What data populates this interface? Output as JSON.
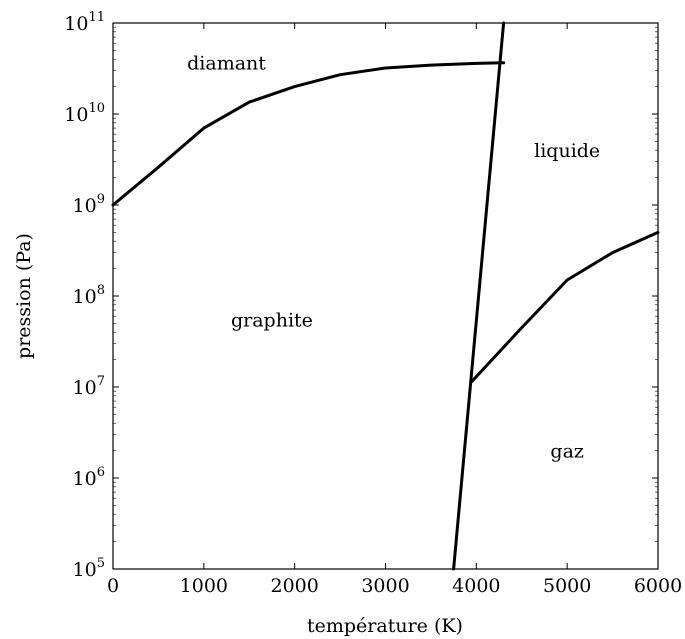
{
  "chart_data": {
    "type": "line",
    "xlabel": "température (K)",
    "ylabel": "pression (Pa)",
    "xlim": [
      0,
      6000
    ],
    "ylim": [
      100000,
      100000000000
    ],
    "yscale": "log",
    "grid": false,
    "x_ticks": [
      0,
      1000,
      2000,
      3000,
      4000,
      5000,
      6000
    ],
    "y_ticks": [
      {
        "base": "10",
        "exp": "5",
        "value": 100000
      },
      {
        "base": "10",
        "exp": "6",
        "value": 1000000
      },
      {
        "base": "10",
        "exp": "7",
        "value": 10000000
      },
      {
        "base": "10",
        "exp": "8",
        "value": 100000000
      },
      {
        "base": "10",
        "exp": "9",
        "value": 1000000000
      },
      {
        "base": "10",
        "exp": "10",
        "value": 10000000000
      },
      {
        "base": "10",
        "exp": "11",
        "value": 100000000000
      }
    ],
    "series": [
      {
        "points": [
          [
            0,
            1000000000
          ],
          [
            500,
            2600000000
          ],
          [
            1000,
            7000000000
          ],
          [
            1500,
            13500000000
          ],
          [
            2000,
            20000000000
          ],
          [
            2500,
            27000000000
          ],
          [
            3000,
            32000000000
          ],
          [
            3500,
            34500000000
          ],
          [
            4000,
            36000000000
          ],
          [
            4300,
            36500000000
          ]
        ]
      },
      {
        "points": [
          [
            3750,
            100000
          ],
          [
            4300,
            100000000000
          ]
        ]
      },
      {
        "points": [
          [
            3950,
            11500000
          ],
          [
            4500,
            45000000
          ],
          [
            5000,
            150000000
          ],
          [
            5500,
            300000000
          ],
          [
            6000,
            500000000
          ]
        ]
      }
    ],
    "annotations": [
      {
        "text": "diamant",
        "x": 1250,
        "y": 37000000000
      },
      {
        "text": "liquide",
        "x": 5000,
        "y": 4000000000
      },
      {
        "text": "graphite",
        "x": 1750,
        "y": 55000000
      },
      {
        "text": "gaz",
        "x": 5000,
        "y": 2000000
      }
    ]
  }
}
